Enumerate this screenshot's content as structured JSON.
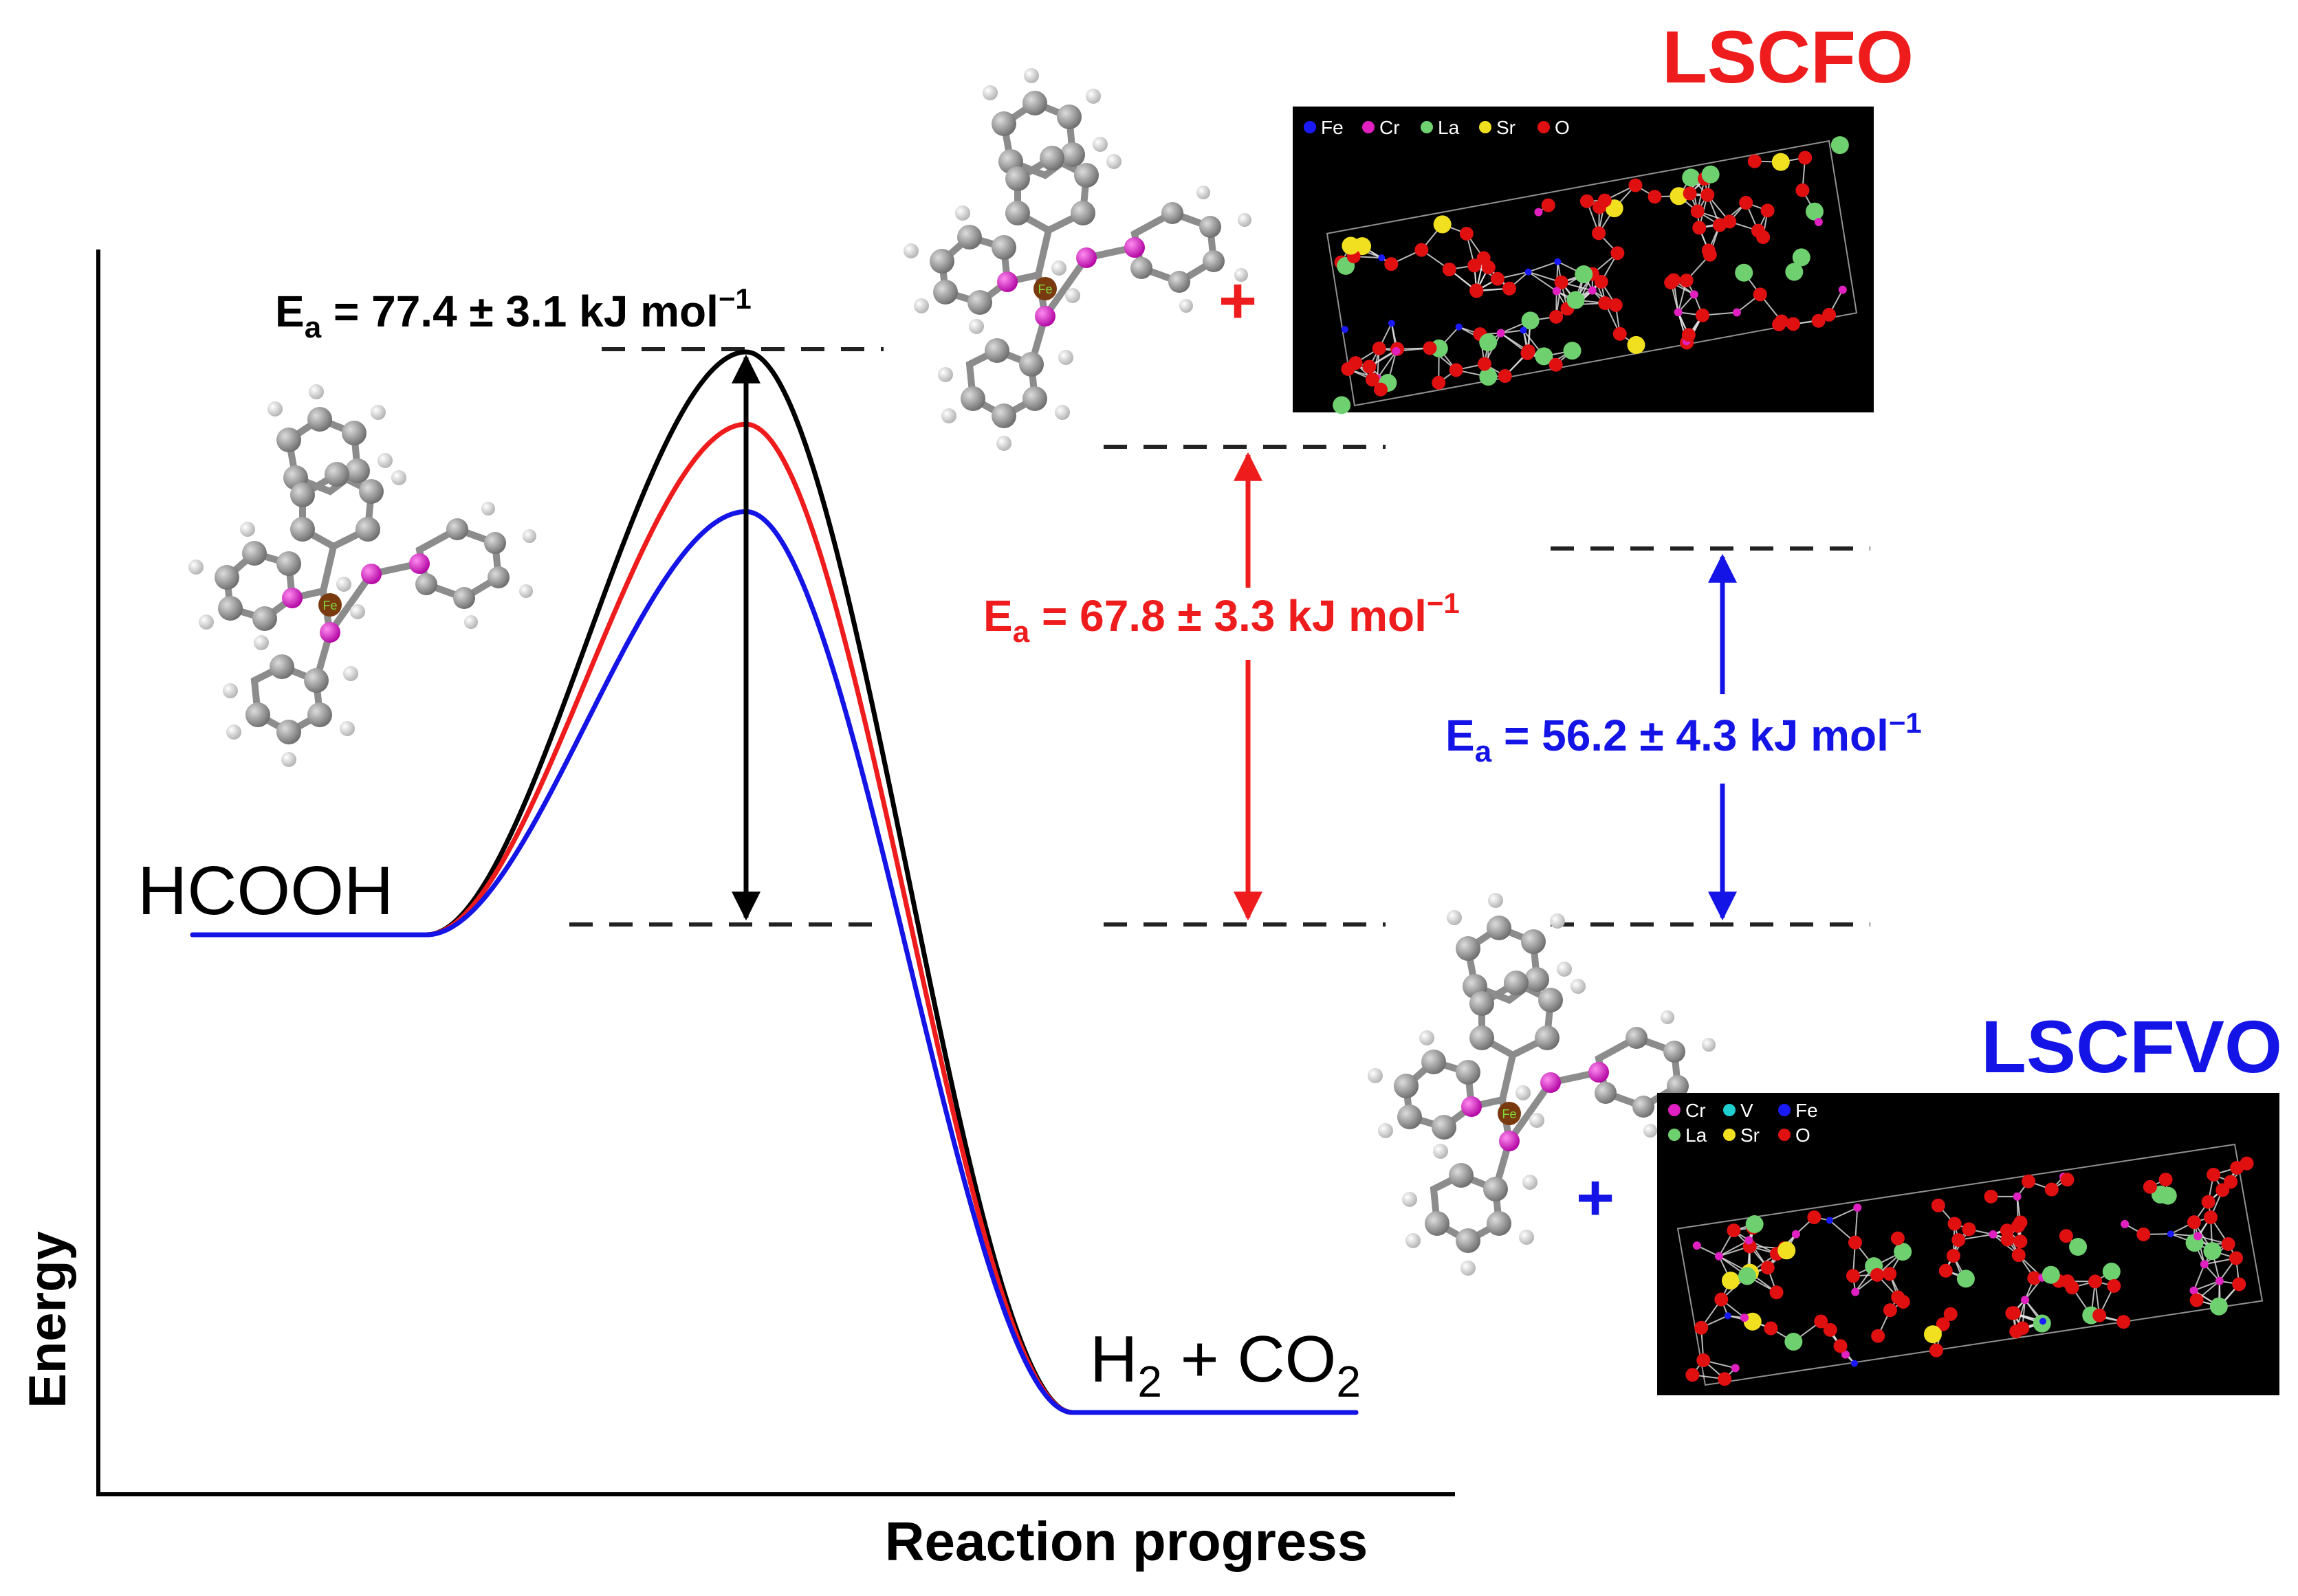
{
  "axes": {
    "y_label": "Energy",
    "x_label": "Reaction progress"
  },
  "species": {
    "reactant": "HCOOH",
    "products": {
      "h": "H",
      "h_sub": "2",
      "plus": " + ",
      "co": "CO",
      "co_sub": "2"
    }
  },
  "barriers": [
    {
      "prefix": "E",
      "sub": "a",
      "text": " = 77.4 ± 3.1 kJ mol",
      "sup": "−1",
      "color": "#000000"
    },
    {
      "prefix": "E",
      "sub": "a",
      "text": " = 67.8 ± 3.3 kJ mol",
      "sup": "−1",
      "color": "#ee1c1c"
    },
    {
      "prefix": "E",
      "sub": "a",
      "text": " = 56.2 ± 4.3 kJ mol",
      "sup": "−1",
      "color": "#1414e6"
    }
  ],
  "catalysts": {
    "lscfo": {
      "title": "LSCFO",
      "color": "#ee1c1c",
      "plus": "+",
      "legend": [
        {
          "el": "Fe",
          "color": "#1a1aff"
        },
        {
          "el": "Cr",
          "color": "#e020c0"
        },
        {
          "el": "La",
          "color": "#6fd06f"
        },
        {
          "el": "Sr",
          "color": "#f0e020"
        },
        {
          "el": "O",
          "color": "#e01010"
        }
      ]
    },
    "lscfvo": {
      "title": "LSCFVO",
      "color": "#1414e6",
      "plus": "+",
      "legend_row1": [
        {
          "el": "Cr",
          "color": "#e020c0"
        },
        {
          "el": "V",
          "color": "#20d0d0"
        },
        {
          "el": "Fe",
          "color": "#1a1aff"
        }
      ],
      "legend_row2": [
        {
          "el": "La",
          "color": "#6fd06f"
        },
        {
          "el": "Sr",
          "color": "#f0e020"
        },
        {
          "el": "O",
          "color": "#e01010"
        }
      ]
    }
  },
  "curves": [
    {
      "name": "black",
      "color": "#000000",
      "barrier_rel": 1.0
    },
    {
      "name": "red",
      "color": "#ee1c1c",
      "barrier_rel": 0.876
    },
    {
      "name": "blue",
      "color": "#1414e6",
      "barrier_rel": 0.726
    }
  ],
  "molecule_icon": "fe-phosphine-complex-icon"
}
